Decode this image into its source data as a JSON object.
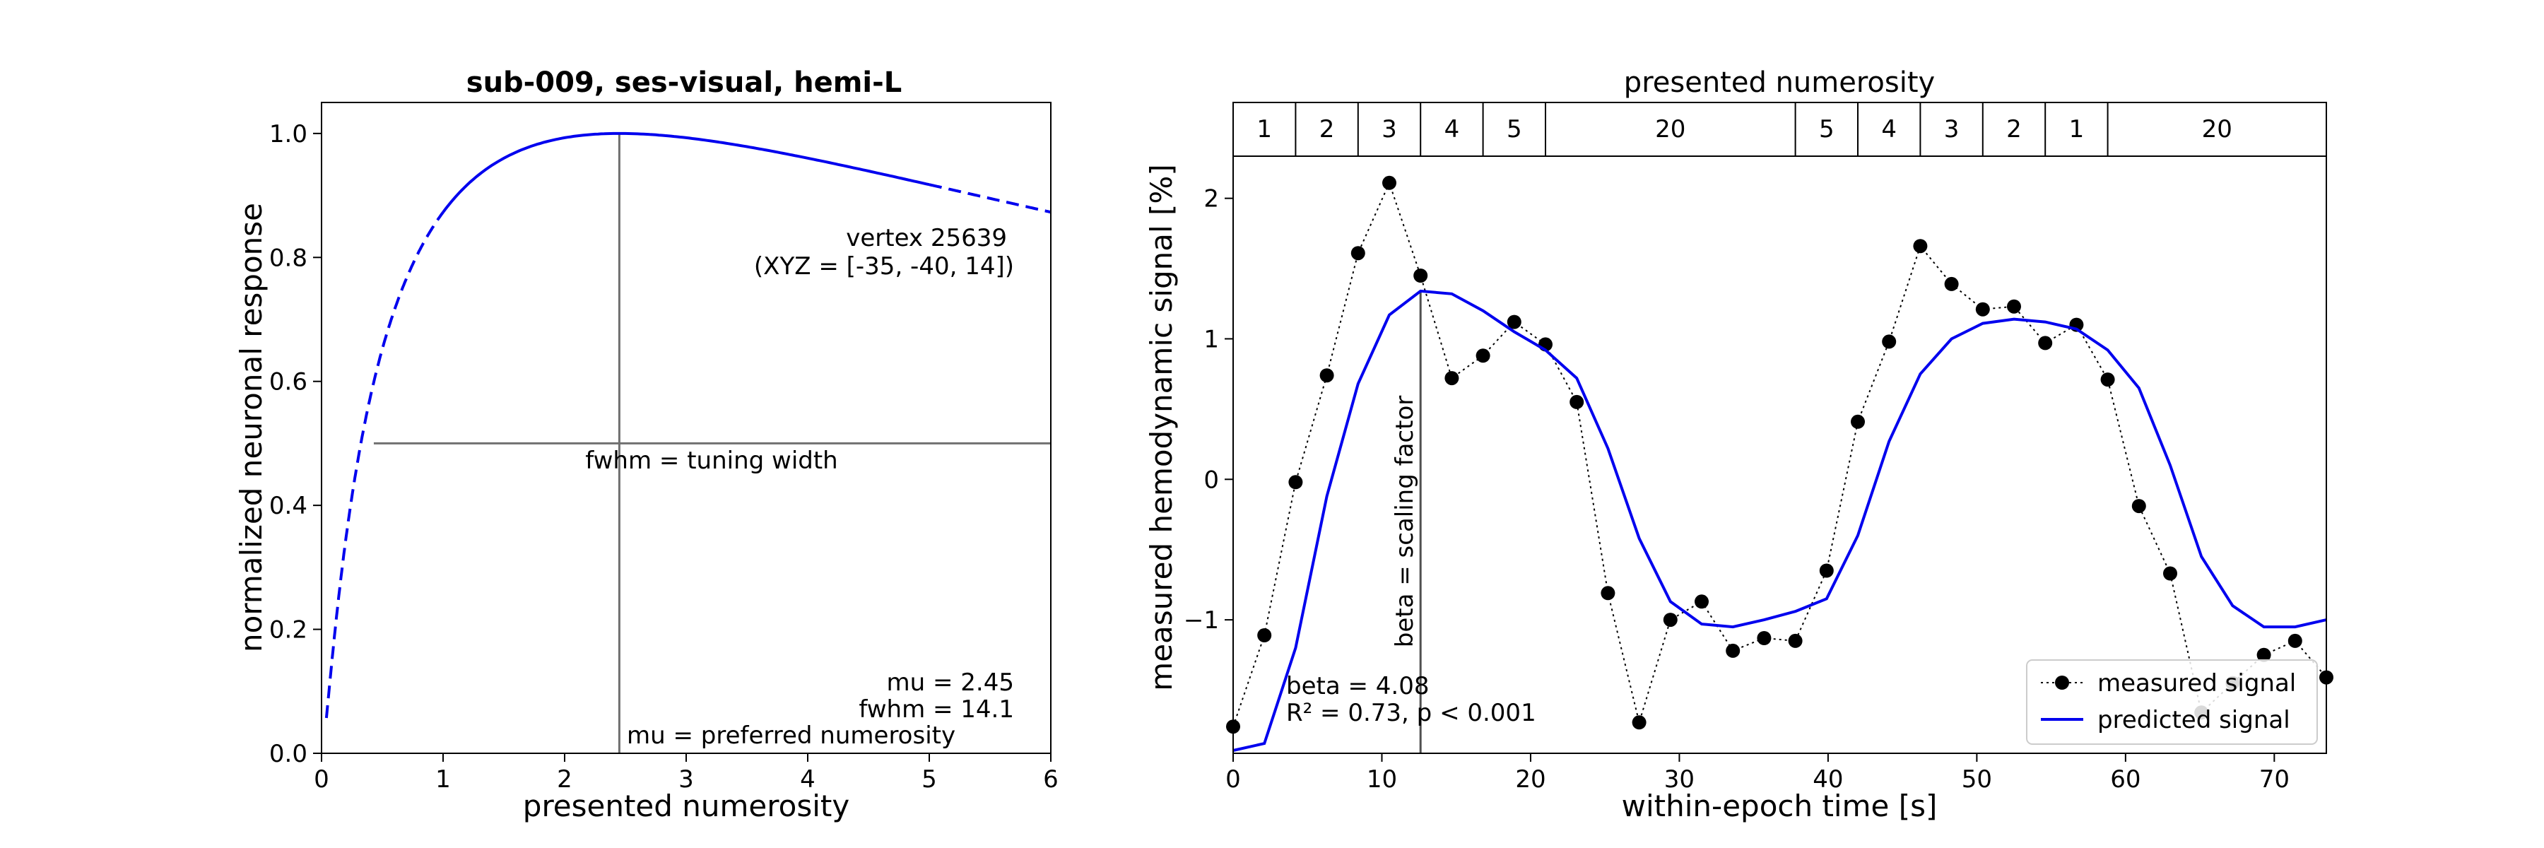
{
  "chart_data": [
    {
      "type": "line",
      "title": "sub-009, ses-visual, hemi-L",
      "xlabel": "presented numerosity",
      "ylabel": "normalized neuronal response",
      "xlim": [
        0,
        6
      ],
      "ylim": [
        0,
        1.05
      ],
      "xticks": [
        0,
        1,
        2,
        3,
        4,
        5,
        6
      ],
      "yticks": [
        0.0,
        0.2,
        0.4,
        0.6,
        0.8,
        1.0
      ],
      "xtick_labels": [
        "0",
        "1",
        "2",
        "3",
        "4",
        "5",
        "6"
      ],
      "ytick_labels": [
        "0.0",
        "0.2",
        "0.4",
        "0.6",
        "0.8",
        "1.0"
      ],
      "grid": false,
      "curve": {
        "type": "log-gaussian tuning",
        "mu": 2.45,
        "fwhm": 14.1,
        "color": "#0000ee",
        "solid_range": [
          1,
          5
        ],
        "dashed_ranges": [
          [
            0.04,
            1
          ],
          [
            5,
            6
          ]
        ]
      },
      "annotations": {
        "vertex_line1": "vertex 25639",
        "vertex_line2": "(XYZ = [-35, -40, 14])",
        "fwhm_label": "fwhm = tuning width",
        "mu_value": "mu = 2.45",
        "fwhm_value": "fwhm = 14.1",
        "mu_label": "mu = preferred numerosity"
      },
      "reference_lines": {
        "vertical_x": 2.45,
        "horizontal_y": 0.5,
        "horizontal_x_range": [
          0.43,
          6
        ],
        "color": "#707070"
      }
    },
    {
      "type": "line",
      "title": "presented numerosity",
      "xlabel": "within-epoch time [s]",
      "ylabel": "measured hemodynamic signal [%]",
      "xlim": [
        0,
        73.5
      ],
      "ylim": [
        -1.95,
        2.3
      ],
      "xticks": [
        0,
        10,
        20,
        30,
        40,
        50,
        60,
        70
      ],
      "yticks": [
        -1,
        0,
        1,
        2
      ],
      "xtick_labels": [
        "0",
        "10",
        "20",
        "30",
        "40",
        "50",
        "60",
        "70"
      ],
      "ytick_labels": [
        "−1",
        "0",
        "1",
        "2"
      ],
      "grid": false,
      "legend_position": "bottom-right",
      "numerosity_blocks": [
        {
          "label": "1",
          "start": 0,
          "end": 4.2
        },
        {
          "label": "2",
          "start": 4.2,
          "end": 8.4
        },
        {
          "label": "3",
          "start": 8.4,
          "end": 12.6
        },
        {
          "label": "4",
          "start": 12.6,
          "end": 16.8
        },
        {
          "label": "5",
          "start": 16.8,
          "end": 21.0
        },
        {
          "label": "20",
          "start": 21.0,
          "end": 37.8
        },
        {
          "label": "5",
          "start": 37.8,
          "end": 42.0
        },
        {
          "label": "4",
          "start": 42.0,
          "end": 46.2
        },
        {
          "label": "3",
          "start": 46.2,
          "end": 50.4
        },
        {
          "label": "2",
          "start": 50.4,
          "end": 54.6
        },
        {
          "label": "1",
          "start": 54.6,
          "end": 58.8
        },
        {
          "label": "20",
          "start": 58.8,
          "end": 73.5
        }
      ],
      "x": [
        0,
        2.1,
        4.2,
        6.3,
        8.4,
        10.5,
        12.6,
        14.7,
        16.8,
        18.9,
        21.0,
        23.1,
        25.2,
        27.3,
        29.4,
        31.5,
        33.6,
        35.7,
        37.8,
        39.9,
        42.0,
        44.1,
        46.2,
        48.3,
        50.4,
        52.5,
        54.6,
        56.7,
        58.8,
        60.9,
        63.0,
        65.1,
        67.2,
        69.3,
        71.4,
        73.5
      ],
      "series": [
        {
          "name": "measured signal",
          "style": "dotted line with filled circle markers",
          "color": "#000000",
          "values": [
            -1.76,
            -1.11,
            -0.02,
            0.74,
            1.61,
            2.11,
            1.45,
            0.72,
            0.88,
            1.12,
            0.96,
            0.55,
            -0.81,
            -1.73,
            -1.0,
            -0.87,
            -1.22,
            -1.13,
            -1.15,
            -0.65,
            0.41,
            0.98,
            1.66,
            1.39,
            1.21,
            1.23,
            0.97,
            1.1,
            0.71,
            -0.19,
            -0.67,
            -1.66,
            -1.45,
            -1.25,
            -1.15,
            -1.41
          ]
        },
        {
          "name": "predicted signal",
          "style": "solid line",
          "color": "#0000ee",
          "values": [
            -1.93,
            -1.88,
            -1.2,
            -0.12,
            0.68,
            1.17,
            1.34,
            1.32,
            1.2,
            1.05,
            0.92,
            0.72,
            0.22,
            -0.42,
            -0.87,
            -1.03,
            -1.05,
            -1.0,
            -0.94,
            -0.85,
            -0.4,
            0.27,
            0.75,
            1.0,
            1.11,
            1.14,
            1.12,
            1.07,
            0.92,
            0.65,
            0.1,
            -0.55,
            -0.9,
            -1.05,
            -1.05,
            -1.0
          ]
        }
      ],
      "annotations": {
        "scaling_label": "beta = scaling factor",
        "beta_value": "beta = 4.08",
        "fit_stats": "R² = 0.73, p < 0.001"
      },
      "reference_lines": {
        "vertical_x": 12.6,
        "color": "#505050"
      }
    }
  ]
}
